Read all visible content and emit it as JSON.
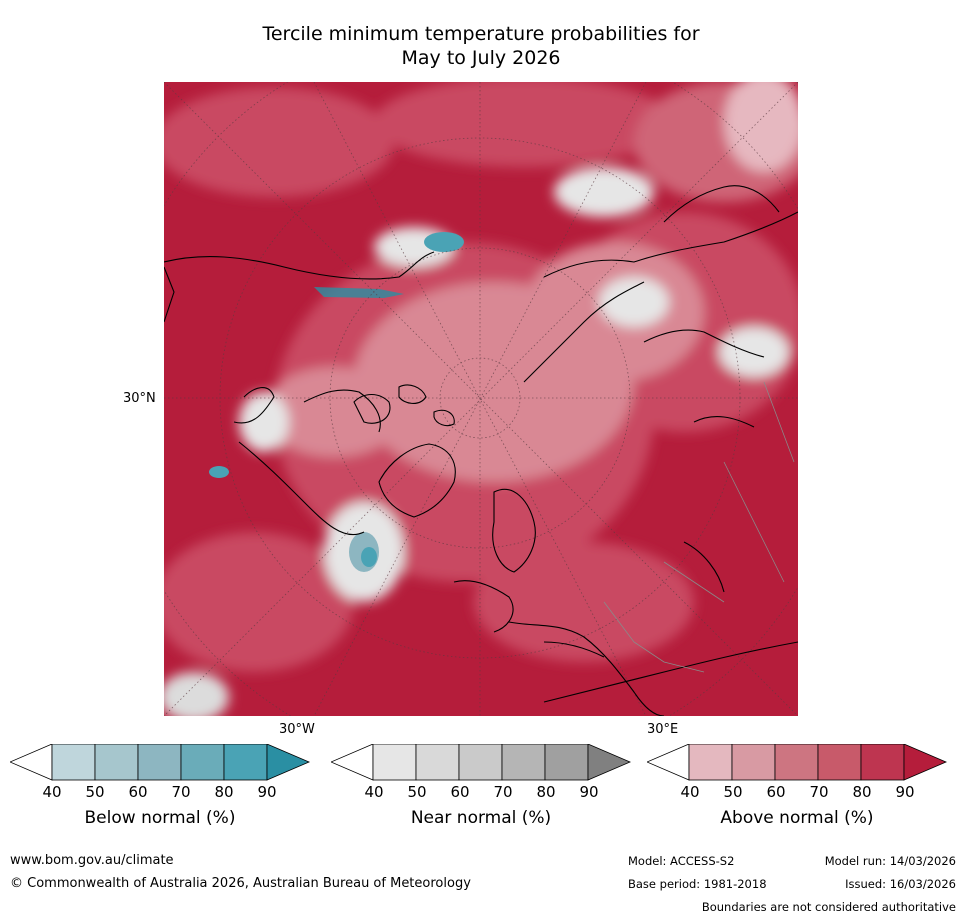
{
  "title_line1": "Tercile minimum temperature probabilities for",
  "title_line2": "May to July 2026",
  "map": {
    "lat_label": "30°N",
    "lon_label_west": "30°W",
    "lon_label_east": "30°E",
    "colors": {
      "above_dark": "#b51d3b",
      "above_mid": "#c94a62",
      "above_light": "#d98894",
      "near": "#e6e6e6",
      "below": "#4aa3b5"
    }
  },
  "colorbars": [
    {
      "name": "below",
      "title": "Below normal (%)",
      "ticks": [
        "40",
        "50",
        "60",
        "70",
        "80",
        "90"
      ],
      "colors": [
        "#ffffff",
        "#bfd6dc",
        "#a6c6cd",
        "#8db6c1",
        "#6aacb9",
        "#4aa3b5",
        "#2a8fa3"
      ]
    },
    {
      "name": "near",
      "title": "Near normal (%)",
      "ticks": [
        "40",
        "50",
        "60",
        "70",
        "80",
        "90"
      ],
      "colors": [
        "#ffffff",
        "#e6e6e6",
        "#d9d9d9",
        "#cacaca",
        "#b5b5b5",
        "#a0a0a0",
        "#808080"
      ]
    },
    {
      "name": "above",
      "title": "Above normal (%)",
      "ticks": [
        "40",
        "50",
        "60",
        "70",
        "80",
        "90"
      ],
      "colors": [
        "#ffffff",
        "#e4b8bf",
        "#d89aa3",
        "#cd7581",
        "#c85a6a",
        "#be3550",
        "#b51d3b"
      ]
    }
  ],
  "footer": {
    "url": "www.bom.gov.au/climate",
    "copyright": "© Commonwealth of Australia 2026, Australian Bureau of Meteorology",
    "model": "Model: ACCESS-S2",
    "base_period": "Base period: 1981-2018",
    "model_run": "Model run: 14/03/2026",
    "issued": "Issued: 16/03/2026",
    "disclaimer": "Boundaries are not considered authoritative"
  }
}
